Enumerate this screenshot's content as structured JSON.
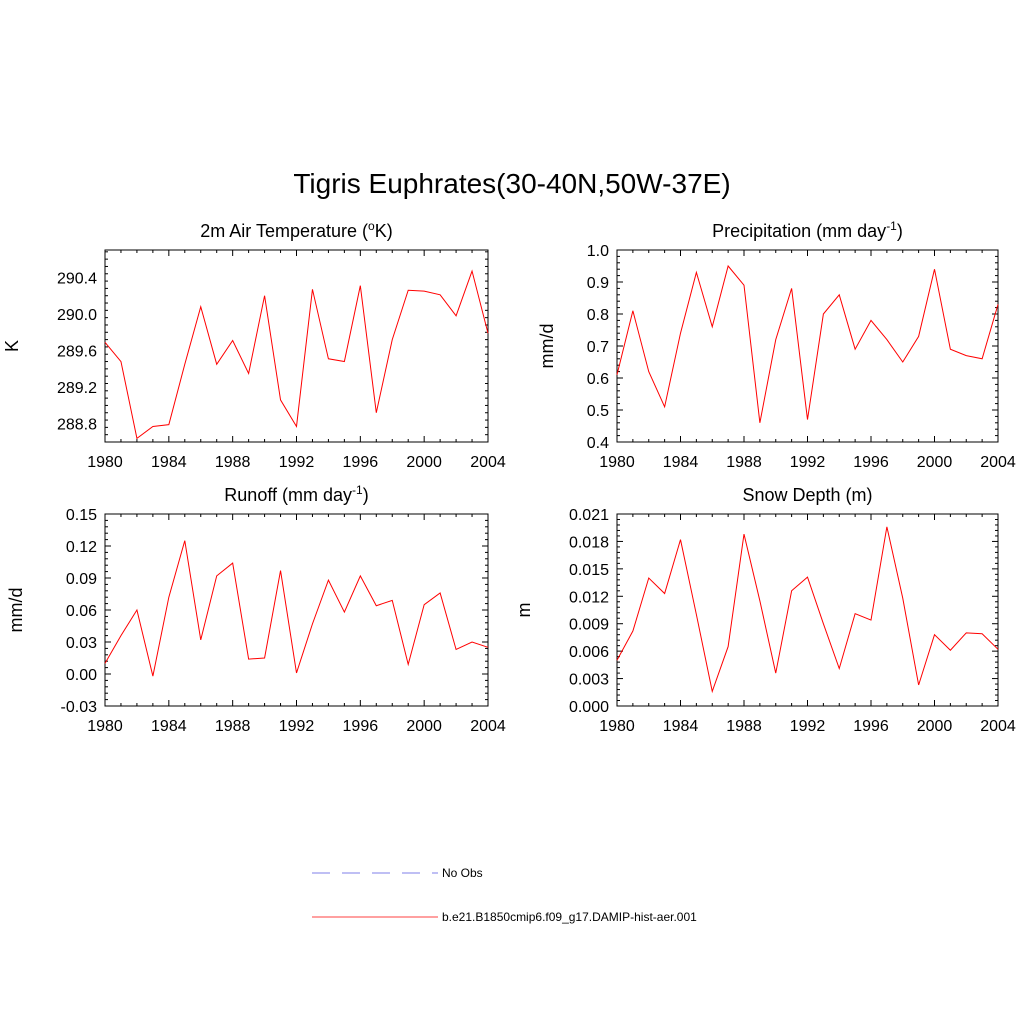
{
  "title": "Tigris Euphrates(30-40N,50W-37E)",
  "colors": {
    "model": "#ff0000",
    "obs": "#9999ee",
    "axis": "#000000"
  },
  "legend": {
    "items": [
      {
        "label": "No Obs",
        "style": "dashed",
        "color": "#9999ee"
      },
      {
        "label": "b.e21.B1850cmip6.f09_g17.DAMIP-hist-aer.001",
        "style": "solid",
        "color": "#ff0000"
      }
    ]
  },
  "chart_data": [
    {
      "type": "line",
      "title": "2m Air Temperature (°K)",
      "title_parts": {
        "main": "2m Air Temperature (",
        "sup": "o",
        "rest": "K)"
      },
      "xlabel": "",
      "ylabel": "K",
      "xlim": [
        1980,
        2004
      ],
      "ylim": [
        288.6,
        290.7
      ],
      "xticks": [
        1980,
        1984,
        1988,
        1992,
        1996,
        2000,
        2004
      ],
      "yticks": [
        288.8,
        289.2,
        289.6,
        290.0,
        290.4
      ],
      "ytick_labels": [
        "288.8",
        "289.2",
        "289.6",
        "290.0",
        "290.4"
      ],
      "x": [
        1980,
        1981,
        1982,
        1983,
        1984,
        1985,
        1986,
        1987,
        1988,
        1989,
        1990,
        1991,
        1992,
        1993,
        1994,
        1995,
        1996,
        1997,
        1998,
        1999,
        2000,
        2001,
        2002,
        2003,
        2004
      ],
      "series": [
        {
          "name": "b.e21.B1850cmip6.f09_g17.DAMIP-hist-aer.001",
          "values": [
            289.69,
            289.48,
            288.64,
            288.77,
            288.79,
            289.45,
            290.08,
            289.45,
            289.71,
            289.35,
            290.2,
            289.06,
            288.77,
            290.27,
            289.51,
            289.48,
            290.31,
            288.92,
            289.72,
            290.26,
            290.25,
            290.21,
            289.98,
            290.47,
            289.79
          ]
        }
      ]
    },
    {
      "type": "line",
      "title": "Precipitation (mm day-1)",
      "title_parts": {
        "main": "Precipitation (mm day",
        "sup": "-1",
        "rest": ")"
      },
      "xlabel": "",
      "ylabel": "mm/d",
      "xlim": [
        1980,
        2004
      ],
      "ylim": [
        0.4,
        1.0
      ],
      "xticks": [
        1980,
        1984,
        1988,
        1992,
        1996,
        2000,
        2004
      ],
      "yticks": [
        0.4,
        0.5,
        0.6,
        0.7,
        0.8,
        0.9,
        1.0
      ],
      "ytick_labels": [
        "0.4",
        "0.5",
        "0.6",
        "0.7",
        "0.8",
        "0.9",
        "1.0"
      ],
      "x": [
        1980,
        1981,
        1982,
        1983,
        1984,
        1985,
        1986,
        1987,
        1988,
        1989,
        1990,
        1991,
        1992,
        1993,
        1994,
        1995,
        1996,
        1997,
        1998,
        1999,
        2000,
        2001,
        2002,
        2003,
        2004
      ],
      "series": [
        {
          "name": "b.e21.B1850cmip6.f09_g17.DAMIP-hist-aer.001",
          "values": [
            0.61,
            0.81,
            0.62,
            0.51,
            0.74,
            0.93,
            0.76,
            0.95,
            0.89,
            0.46,
            0.72,
            0.88,
            0.47,
            0.8,
            0.86,
            0.69,
            0.78,
            0.72,
            0.65,
            0.73,
            0.94,
            0.69,
            0.67,
            0.66,
            0.83
          ]
        }
      ]
    },
    {
      "type": "line",
      "title": "Runoff (mm day-1)",
      "title_parts": {
        "main": "Runoff (mm day",
        "sup": "-1",
        "rest": ")"
      },
      "xlabel": "",
      "ylabel": "mm/d",
      "xlim": [
        1980,
        2004
      ],
      "ylim": [
        -0.03,
        0.15
      ],
      "xticks": [
        1980,
        1984,
        1988,
        1992,
        1996,
        2000,
        2004
      ],
      "yticks": [
        -0.03,
        0.0,
        0.03,
        0.06,
        0.09,
        0.12,
        0.15
      ],
      "ytick_labels": [
        "-0.03",
        "0.00",
        "0.03",
        "0.06",
        "0.09",
        "0.12",
        "0.15"
      ],
      "x": [
        1980,
        1981,
        1982,
        1983,
        1984,
        1985,
        1986,
        1987,
        1988,
        1989,
        1990,
        1991,
        1992,
        1993,
        1994,
        1995,
        1996,
        1997,
        1998,
        1999,
        2000,
        2001,
        2002,
        2003,
        2004
      ],
      "series": [
        {
          "name": "b.e21.B1850cmip6.f09_g17.DAMIP-hist-aer.001",
          "values": [
            0.01,
            0.036,
            0.06,
            -0.002,
            0.072,
            0.125,
            0.032,
            0.092,
            0.104,
            0.014,
            0.015,
            0.097,
            0.001,
            0.047,
            0.088,
            0.058,
            0.092,
            0.064,
            0.069,
            0.009,
            0.065,
            0.076,
            0.023,
            0.03,
            0.025
          ]
        }
      ]
    },
    {
      "type": "line",
      "title": "Snow Depth (m)",
      "title_parts": {
        "main": "Snow Depth (m)",
        "sup": "",
        "rest": ""
      },
      "xlabel": "",
      "ylabel": "m",
      "xlim": [
        1980,
        2004
      ],
      "ylim": [
        0.0,
        0.021
      ],
      "xticks": [
        1980,
        1984,
        1988,
        1992,
        1996,
        2000,
        2004
      ],
      "yticks": [
        0.0,
        0.003,
        0.006,
        0.009,
        0.012,
        0.015,
        0.018,
        0.021
      ],
      "ytick_labels": [
        "0.000",
        "0.003",
        "0.006",
        "0.009",
        "0.012",
        "0.015",
        "0.018",
        "0.021"
      ],
      "x": [
        1980,
        1981,
        1982,
        1983,
        1984,
        1985,
        1986,
        1987,
        1988,
        1989,
        1990,
        1991,
        1992,
        1993,
        1994,
        1995,
        1996,
        1997,
        1998,
        1999,
        2000,
        2001,
        2002,
        2003,
        2004
      ],
      "series": [
        {
          "name": "b.e21.B1850cmip6.f09_g17.DAMIP-hist-aer.001",
          "values": [
            0.005,
            0.0082,
            0.014,
            0.0123,
            0.0182,
            0.01,
            0.0016,
            0.0065,
            0.0188,
            0.0115,
            0.0036,
            0.0126,
            0.0141,
            0.009,
            0.0041,
            0.0101,
            0.0094,
            0.0196,
            0.0118,
            0.0023,
            0.0078,
            0.0061,
            0.008,
            0.0079,
            0.0062
          ]
        }
      ]
    }
  ]
}
